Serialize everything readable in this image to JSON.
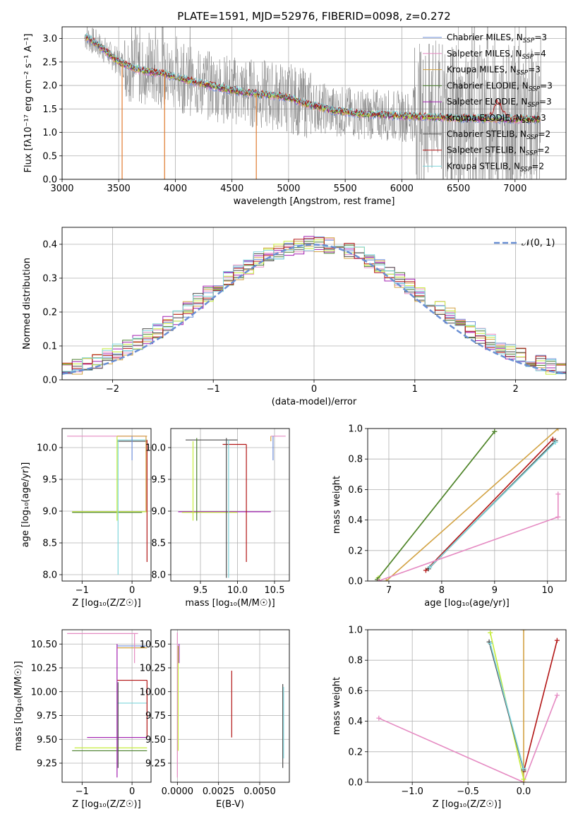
{
  "figure_title": "PLATE=1591, MJD=52976, FIBERID=0098, z=0.272",
  "colors": {
    "Chabrier MILES": "#6f8fd8",
    "Salpeter MILES": "#e58ac2",
    "Kroupa MILES": "#d2a242",
    "Chabrier ELODIE": "#4a7f2e",
    "Salpeter ELODIE": "#a21fb0",
    "Kroupa ELODIE": "#c6ed3a",
    "Chabrier STELIB": "#4d4d4d",
    "Salpeter STELIB": "#b21414",
    "Kroupa STELIB": "#7fd6dc",
    "data": "#808080",
    "orange": "#e07a2e",
    "normal": "#6a8fd4"
  },
  "chart_data": [
    {
      "type": "line",
      "title": "PLATE=1591, MJD=52976, FIBERID=0098, z=0.272",
      "xlabel": "wavelength [Angstrom, rest frame]",
      "ylabel": "Flux [fλ10⁻¹⁷ erg cm⁻² s⁻¹ A⁻¹]",
      "xlim": [
        3000,
        7450
      ],
      "ylim": [
        0.0,
        3.25
      ],
      "xticks": [
        "3000",
        "3500",
        "4000",
        "4500",
        "5000",
        "5500",
        "6000",
        "6500",
        "7000"
      ],
      "yticks": [
        "0.0",
        "0.5",
        "1.0",
        "1.5",
        "2.0",
        "2.5",
        "3.0"
      ],
      "legend_position": "top-right",
      "legend": [
        {
          "name": "Chabrier MILES, N",
          "sub": "SSP",
          "tail": "=3"
        },
        {
          "name": "Salpeter MILES, N",
          "sub": "SSP",
          "tail": "=4"
        },
        {
          "name": "Kroupa MILES, N",
          "sub": "SSP",
          "tail": "=3"
        },
        {
          "name": "Chabrier ELODIE, N",
          "sub": "SSP",
          "tail": "=3"
        },
        {
          "name": "Salpeter ELODIE, N",
          "sub": "SSP",
          "tail": "=3"
        },
        {
          "name": "Kroupa ELODIE, N",
          "sub": "SSP",
          "tail": "=3"
        },
        {
          "name": "Chabrier STELIB, N",
          "sub": "SSP",
          "tail": "=2"
        },
        {
          "name": "Salpeter STELIB, N",
          "sub": "SSP",
          "tail": "=2"
        },
        {
          "name": "Kroupa STELIB, N",
          "sub": "SSP",
          "tail": "=2"
        }
      ],
      "model_continuum": {
        "x": [
          3200,
          3300,
          3400,
          3500,
          3600,
          3700,
          3800,
          3900,
          4000,
          4100,
          4200,
          4300,
          4400,
          4500,
          4600,
          4700,
          4800,
          4900,
          5000,
          5100,
          5200,
          5300,
          5400,
          5500,
          5600,
          5700,
          5800,
          5900,
          6000,
          6100,
          6200,
          6300,
          6400,
          6500,
          6600,
          6700,
          6800,
          6900,
          7000,
          7100,
          7200
        ],
        "y": [
          3.05,
          2.9,
          2.7,
          2.5,
          2.4,
          2.32,
          2.28,
          2.25,
          2.18,
          2.12,
          2.06,
          2.0,
          1.95,
          1.9,
          1.86,
          1.83,
          1.8,
          1.78,
          1.74,
          1.65,
          1.58,
          1.52,
          1.46,
          1.44,
          1.4,
          1.39,
          1.38,
          1.36,
          1.35,
          1.34,
          1.33,
          1.32,
          1.31,
          1.3,
          1.3,
          1.29,
          1.29,
          1.28,
          1.28,
          1.28,
          1.27
        ]
      },
      "data_spectrum_note": "noisy observed spectrum in grey around the model continuum"
    },
    {
      "type": "line",
      "xlabel": "(data-model)/error",
      "ylabel": "Normed distribution",
      "xlim": [
        -2.5,
        2.5
      ],
      "ylim": [
        0.0,
        0.45
      ],
      "xticks": [
        "−2",
        "−1",
        "0",
        "1",
        "2"
      ],
      "yticks": [
        "0.0",
        "0.1",
        "0.2",
        "0.3",
        "0.4"
      ],
      "legend": [
        {
          "name": "𝒩(0, 1)"
        }
      ],
      "legend_position": "top-right",
      "normal_curve": {
        "mu": 0,
        "sigma": 1
      }
    },
    {
      "type": "scatter",
      "xlabel": "Z [log₁₀(Z/Z☉)]",
      "ylabel": "age  [log₁₀(age/yr)]",
      "xlim": [
        -1.4,
        0.38
      ],
      "ylim": [
        7.9,
        10.3
      ],
      "xticks": [
        "−1",
        "0"
      ],
      "yticks": [
        "8.0",
        "8.5",
        "9.0",
        "9.5",
        "10.0"
      ]
    },
    {
      "type": "scatter",
      "xlabel": "mass [log₁₀(M/M☉)]",
      "xlim": [
        9.1,
        10.7
      ],
      "ylim": [
        7.9,
        10.3
      ],
      "xticks": [
        "9.5",
        "10.0",
        "10.5"
      ],
      "yticks": [
        "8.0",
        "8.5",
        "9.0",
        "9.5",
        "10.0"
      ]
    },
    {
      "type": "line",
      "xlabel": "age  [log₁₀(age/yr)]",
      "ylabel": "mass weight",
      "xlim": [
        6.6,
        10.35
      ],
      "ylim": [
        0.0,
        1.0
      ],
      "xticks": [
        "7",
        "8",
        "9",
        "10"
      ],
      "yticks": [
        "0.0",
        "0.2",
        "0.4",
        "0.6",
        "0.8",
        "1.0"
      ],
      "series": [
        {
          "name": "Kroupa ELODIE",
          "x": [
            6.8,
            9.0
          ],
          "y": [
            0.02,
            0.98
          ]
        },
        {
          "name": "Chabrier ELODIE",
          "x": [
            6.78,
            9.0
          ],
          "y": [
            0.01,
            0.98
          ]
        },
        {
          "name": "Kroupa MILES",
          "x": [
            6.95,
            10.2
          ],
          "y": [
            0.0,
            1.0
          ]
        },
        {
          "name": "Salpeter STELIB",
          "x": [
            7.7,
            10.1
          ],
          "y": [
            0.07,
            0.93
          ]
        },
        {
          "name": "Chabrier STELIB",
          "x": [
            7.75,
            10.15
          ],
          "y": [
            0.08,
            0.92
          ]
        },
        {
          "name": "Kroupa STELIB",
          "x": [
            7.77,
            10.15
          ],
          "y": [
            0.09,
            0.91
          ]
        },
        {
          "name": "Salpeter MILES",
          "x": [
            6.8,
            10.2,
            10.2
          ],
          "y": [
            0.0,
            0.42,
            0.57
          ]
        }
      ]
    },
    {
      "type": "scatter",
      "xlabel": "Z [log₁₀(Z/Z☉)]",
      "ylabel": "mass [log₁₀(M/M☉)]",
      "xlim": [
        -1.4,
        0.38
      ],
      "ylim": [
        9.05,
        10.65
      ],
      "xticks": [
        "−1",
        "0"
      ],
      "yticks": [
        "9.25",
        "9.50",
        "9.75",
        "10.00",
        "10.25",
        "10.50"
      ]
    },
    {
      "type": "scatter",
      "xlabel": "E(B-V)",
      "xlim": [
        -0.0004,
        0.0068
      ],
      "ylim": [
        9.05,
        10.65
      ],
      "xticks": [
        "0.0000",
        "0.0025",
        "0.0050"
      ],
      "yticks": [
        "9.25",
        "9.50",
        "9.75",
        "10.00",
        "10.25",
        "10.50"
      ]
    },
    {
      "type": "line",
      "xlabel": "Z [log₁₀(Z/Z☉)]",
      "ylabel": "mass weight",
      "xlim": [
        -1.4,
        0.38
      ],
      "ylim": [
        0.0,
        1.0
      ],
      "xticks": [
        "−1.0",
        "−0.5",
        "0.0"
      ],
      "yticks": [
        "0.0",
        "0.2",
        "0.4",
        "0.6",
        "0.8",
        "1.0"
      ],
      "series": [
        {
          "name": "Salpeter MILES",
          "x": [
            -1.3,
            0.0,
            0.3
          ],
          "y": [
            0.42,
            0.0,
            0.57
          ]
        },
        {
          "name": "Salpeter STELIB",
          "x": [
            0.0,
            0.3
          ],
          "y": [
            0.07,
            0.93
          ]
        },
        {
          "name": "Kroupa MILES",
          "x": [
            0.0,
            0.0
          ],
          "y": [
            0.0,
            1.0
          ]
        },
        {
          "name": "Kroupa ELODIE",
          "x": [
            -0.3,
            0.0
          ],
          "y": [
            0.98,
            0.02
          ]
        },
        {
          "name": "Chabrier STELIB",
          "x": [
            -0.31,
            0.0
          ],
          "y": [
            0.92,
            0.08
          ]
        },
        {
          "name": "Kroupa STELIB",
          "x": [
            -0.3,
            0.0
          ],
          "y": [
            0.91,
            0.09
          ]
        }
      ]
    }
  ]
}
